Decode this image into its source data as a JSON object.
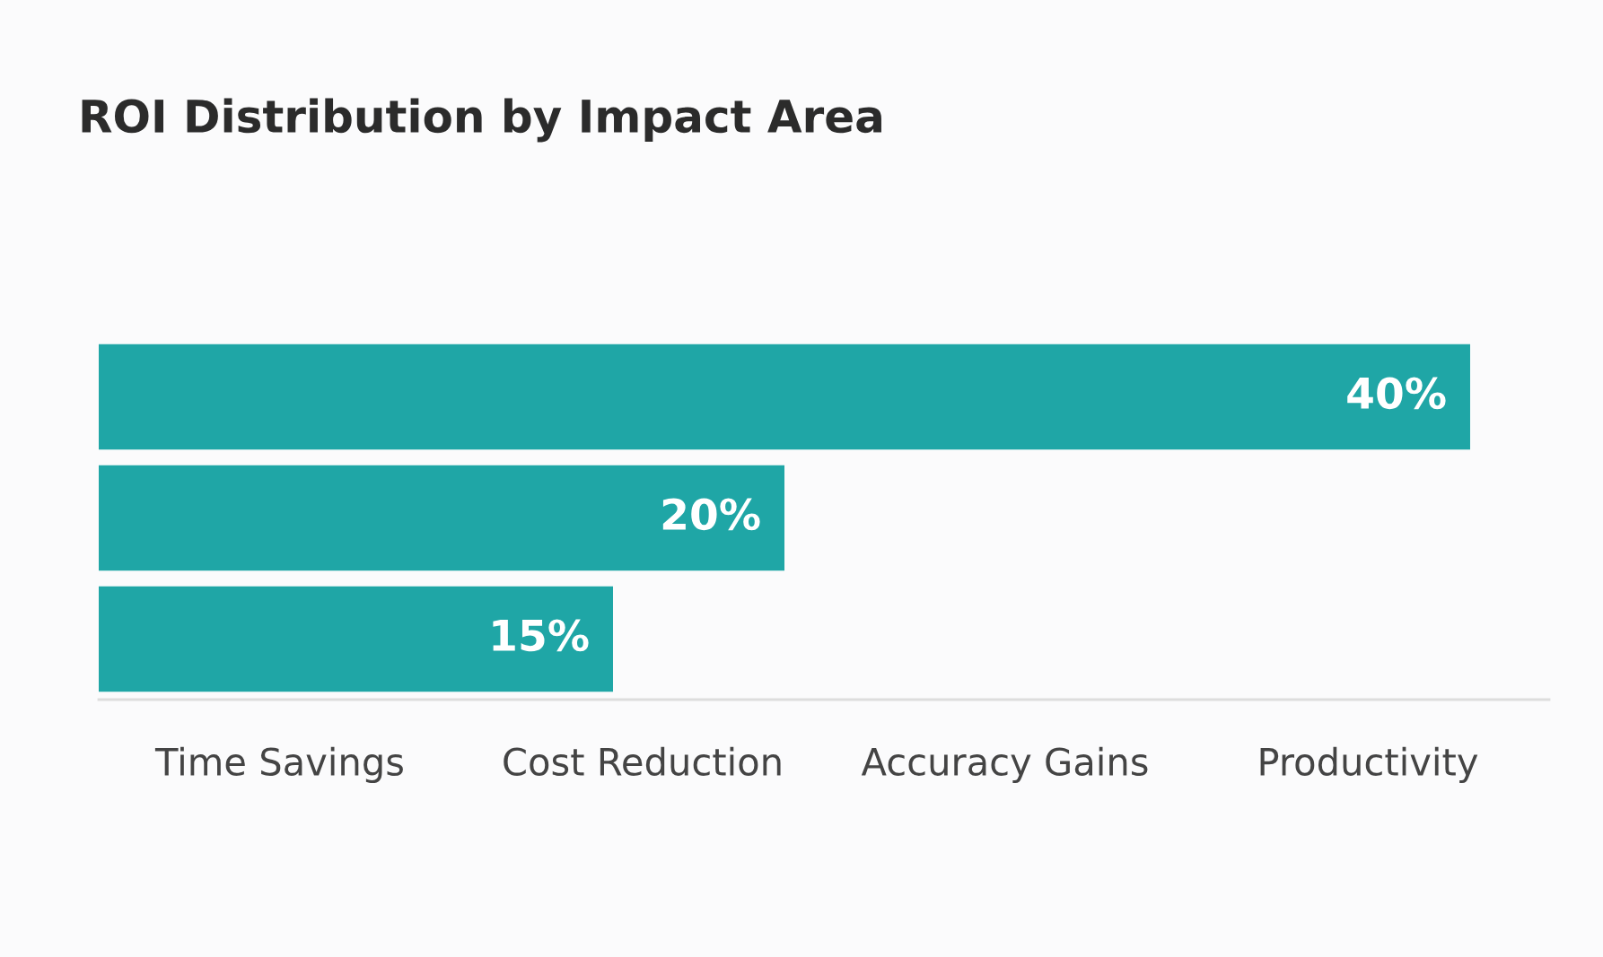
{
  "chart_data": {
    "type": "bar",
    "orientation": "horizontal",
    "title": "ROI Distribution by Impact Area",
    "categories": [
      null,
      null,
      null
    ],
    "values": [
      40,
      20,
      15
    ],
    "value_labels": [
      "40%",
      "20%",
      "15%"
    ],
    "color": "#1fa6a6",
    "annotations": [
      "Time Savings",
      "Cost Reduction",
      "Accuracy Gains",
      "Productivity"
    ]
  }
}
